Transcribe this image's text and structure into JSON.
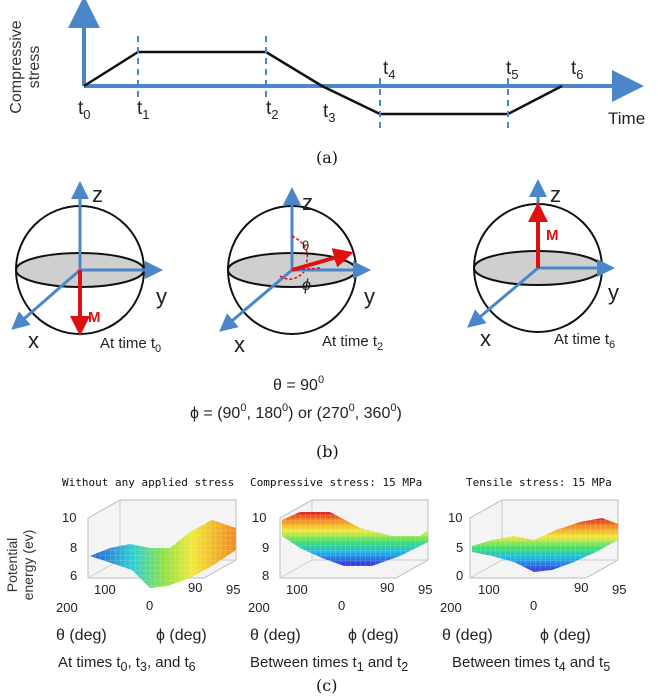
{
  "panel_a": {
    "y_label_1": "Compressive",
    "y_label_2": "stress",
    "x_label": "Time",
    "time_points": [
      "t",
      "t",
      "t",
      "t",
      "t",
      "t",
      "t"
    ],
    "subscripts": [
      "0",
      "1",
      "2",
      "3",
      "4",
      "5",
      "6"
    ],
    "caption": "(a)",
    "colors": {
      "axis": "#4a86c8",
      "line": "#111111"
    }
  },
  "panel_b": {
    "spheres": [
      {
        "z": "z",
        "y": "y",
        "x": "x",
        "m": "M",
        "time_label": "At time t",
        "time_sub": "0"
      },
      {
        "z": "z",
        "y": "y",
        "x": "x",
        "m": "M",
        "theta": "θ",
        "phi": "ϕ",
        "time_label": "At time t",
        "time_sub": "2"
      },
      {
        "z": "z",
        "y": "y",
        "x": "x",
        "m": "M",
        "time_label": "At time t",
        "time_sub": "6"
      }
    ],
    "theta_eq": "θ = 90",
    "theta_sup": "0",
    "phi_eq_parts": [
      "ϕ = (90",
      "0",
      ", 180",
      "0",
      ") or (270",
      "0",
      ", 360",
      "0",
      ")"
    ],
    "caption": "(b)",
    "colors": {
      "axis": "#4a86c8",
      "moment": "#e01010",
      "disk": "#cfcfcf"
    }
  },
  "panel_c": {
    "y_label_1": "Potential",
    "y_label_2": "energy (ev)",
    "plots": [
      {
        "title": "Without any applied stress",
        "z_ticks": [
          "10",
          "8",
          "6"
        ],
        "theta_ticks": [
          "200",
          "100",
          "0"
        ],
        "phi_ticks": [
          "90",
          "95"
        ],
        "theta_label": "θ (deg)",
        "phi_label": "ϕ (deg)"
      },
      {
        "title": "Compressive stress: 15 MPa",
        "z_ticks": [
          "10",
          "9",
          "8"
        ],
        "theta_ticks": [
          "200",
          "100",
          "0"
        ],
        "phi_ticks": [
          "90",
          "95"
        ],
        "theta_label": "θ (deg)",
        "phi_label": "ϕ (deg)"
      },
      {
        "title": "Tensile stress: 15 MPa",
        "z_ticks": [
          "10",
          "5",
          "0"
        ],
        "theta_ticks": [
          "200",
          "100",
          "0"
        ],
        "phi_ticks": [
          "90",
          "95"
        ],
        "theta_label": "θ (deg)",
        "phi_label": "ϕ (deg)"
      }
    ],
    "bottom_labels": [
      {
        "parts": [
          "At times t",
          "0",
          ", t",
          "3",
          ", and t",
          "6"
        ]
      },
      {
        "parts": [
          "Between times t",
          "1",
          " and t",
          "2"
        ]
      },
      {
        "parts": [
          "Between times t",
          "4",
          " and t",
          "5"
        ]
      }
    ],
    "caption": "(c)"
  }
}
